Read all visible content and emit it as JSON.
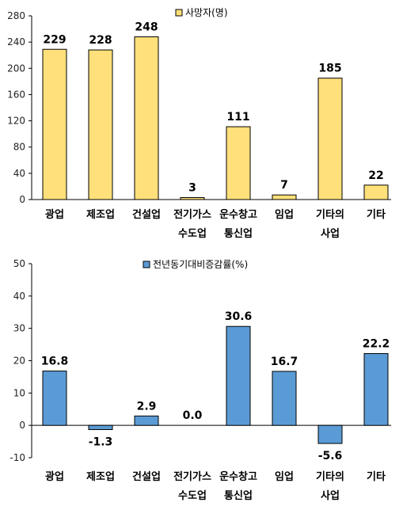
{
  "chart_data": [
    {
      "type": "bar",
      "categories": [
        [
          "광업"
        ],
        [
          "제조업"
        ],
        [
          "건설업"
        ],
        [
          "전기가스",
          "수도업"
        ],
        [
          "운수창고",
          "통신업"
        ],
        [
          "임업"
        ],
        [
          "기타의",
          "사업"
        ],
        [
          "기타"
        ]
      ],
      "series": [
        {
          "name": "사망자(명)",
          "values": [
            229,
            228,
            248,
            3,
            111,
            7,
            185,
            22
          ]
        }
      ],
      "data_labels": [
        "229",
        "228",
        "248",
        "3",
        "111",
        "7",
        "185",
        "22"
      ],
      "yticks": [
        "280",
        "240",
        "200",
        "160",
        "120",
        "80",
        "40",
        "0"
      ],
      "ylim": [
        0,
        280
      ],
      "color": "#ffe07a",
      "grid": false,
      "legend": "top"
    },
    {
      "type": "bar",
      "categories": [
        [
          "광업"
        ],
        [
          "제조업"
        ],
        [
          "건설업"
        ],
        [
          "전기가스",
          "수도업"
        ],
        [
          "운수창고",
          "통신업"
        ],
        [
          "임업"
        ],
        [
          "기타의",
          "사업"
        ],
        [
          "기타"
        ]
      ],
      "series": [
        {
          "name": "전년동기대비증감률(%)",
          "values": [
            16.8,
            -1.3,
            2.9,
            0.0,
            30.6,
            16.7,
            -5.6,
            22.2
          ]
        }
      ],
      "data_labels": [
        "16.8",
        "-1.3",
        "2.9",
        "0.0",
        "30.6",
        "16.7",
        "-5.6",
        "22.2"
      ],
      "yticks": [
        "50",
        "40",
        "30",
        "20",
        "10",
        "0",
        "-10"
      ],
      "ylim": [
        -10,
        50
      ],
      "color": "#5b9bd5",
      "grid": false,
      "legend": "top"
    }
  ]
}
